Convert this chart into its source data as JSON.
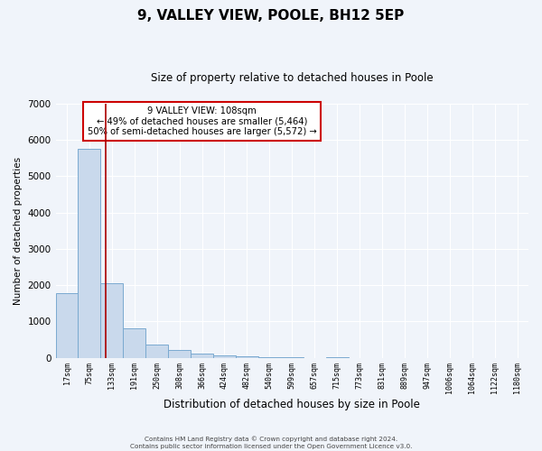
{
  "title": "9, VALLEY VIEW, POOLE, BH12 5EP",
  "subtitle": "Size of property relative to detached houses in Poole",
  "xlabel": "Distribution of detached houses by size in Poole",
  "ylabel": "Number of detached properties",
  "bin_labels": [
    "17sqm",
    "75sqm",
    "133sqm",
    "191sqm",
    "250sqm",
    "308sqm",
    "366sqm",
    "424sqm",
    "482sqm",
    "540sqm",
    "599sqm",
    "657sqm",
    "715sqm",
    "773sqm",
    "831sqm",
    "889sqm",
    "947sqm",
    "1006sqm",
    "1064sqm",
    "1122sqm",
    "1180sqm"
  ],
  "bar_values": [
    1780,
    5750,
    2050,
    820,
    360,
    210,
    110,
    55,
    30,
    10,
    5,
    0,
    25,
    0,
    0,
    0,
    0,
    0,
    0,
    0,
    0
  ],
  "bar_color": "#c9d9ec",
  "bar_edge_color": "#7aaad0",
  "ylim": [
    0,
    7000
  ],
  "yticks": [
    0,
    1000,
    2000,
    3000,
    4000,
    5000,
    6000,
    7000
  ],
  "property_line_x": 1.72,
  "property_line_color": "#aa0000",
  "annotation_text": "9 VALLEY VIEW: 108sqm\n← 49% of detached houses are smaller (5,464)\n50% of semi-detached houses are larger (5,572) →",
  "annotation_box_color": "#ffffff",
  "annotation_box_edge_color": "#cc0000",
  "footer_line1": "Contains HM Land Registry data © Crown copyright and database right 2024.",
  "footer_line2": "Contains public sector information licensed under the Open Government Licence v3.0.",
  "background_color": "#f0f4fa",
  "plot_bg_color": "#f0f4fa",
  "grid_color": "#ffffff",
  "title_fontsize": 11,
  "subtitle_fontsize": 8.5
}
